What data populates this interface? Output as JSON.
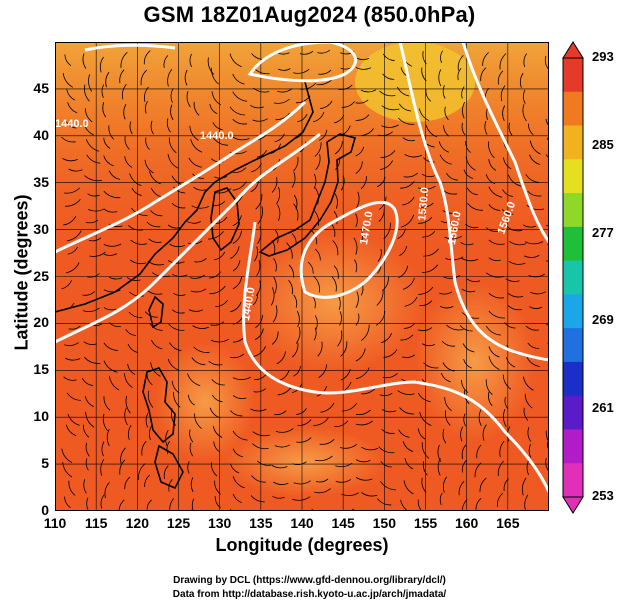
{
  "title": "GSM 18Z01Aug2024 (850.0hPa)",
  "x_axis": {
    "title": "Longitude (degrees)",
    "ticks": [
      "110",
      "115",
      "120",
      "125",
      "130",
      "135",
      "140",
      "145",
      "150",
      "155",
      "160",
      "165"
    ]
  },
  "y_axis": {
    "title": "Latitude (degrees)",
    "ticks": [
      "0",
      "5",
      "10",
      "15",
      "20",
      "25",
      "30",
      "35",
      "40",
      "45"
    ]
  },
  "colorbar": {
    "labels": [
      "293",
      "285",
      "277",
      "269",
      "261",
      "253"
    ],
    "colors": [
      "#e53a2a",
      "#f07a20",
      "#f2b21f",
      "#e6df20",
      "#8ed82a",
      "#1fbf3a",
      "#19c5a8",
      "#1aa6e8",
      "#2070e0",
      "#1a2fc8",
      "#5a1cc8",
      "#b21cc8",
      "#e030b8"
    ]
  },
  "contour_labels": [
    "1440.0",
    "1440.0",
    "1440.0",
    "1470.0",
    "1530.0",
    "1560.0",
    "1560.0"
  ],
  "credits": [
    "Drawing by DCL (https://www.gfd-dennou.org/library/dcl/)",
    "Data from http://database.rish.kyoto-u.ac.jp/arch/jmadata/"
  ],
  "chart_data": {
    "type": "map",
    "projection": "equirectangular",
    "xlabel": "Longitude (degrees)",
    "ylabel": "Latitude (degrees)",
    "xlim": [
      110,
      170
    ],
    "ylim": [
      0,
      50
    ],
    "field": "temperature (shaded), geopotential height contours (white), wind streamlines (black)",
    "colorbar_range": [
      253,
      293
    ],
    "grid": true,
    "colors": {
      "background_field": "#ef5a22",
      "warm_core": "#f7893a",
      "cool_north": "#f2a93a",
      "contour": "#ffffff",
      "streamline": "#000000"
    }
  }
}
